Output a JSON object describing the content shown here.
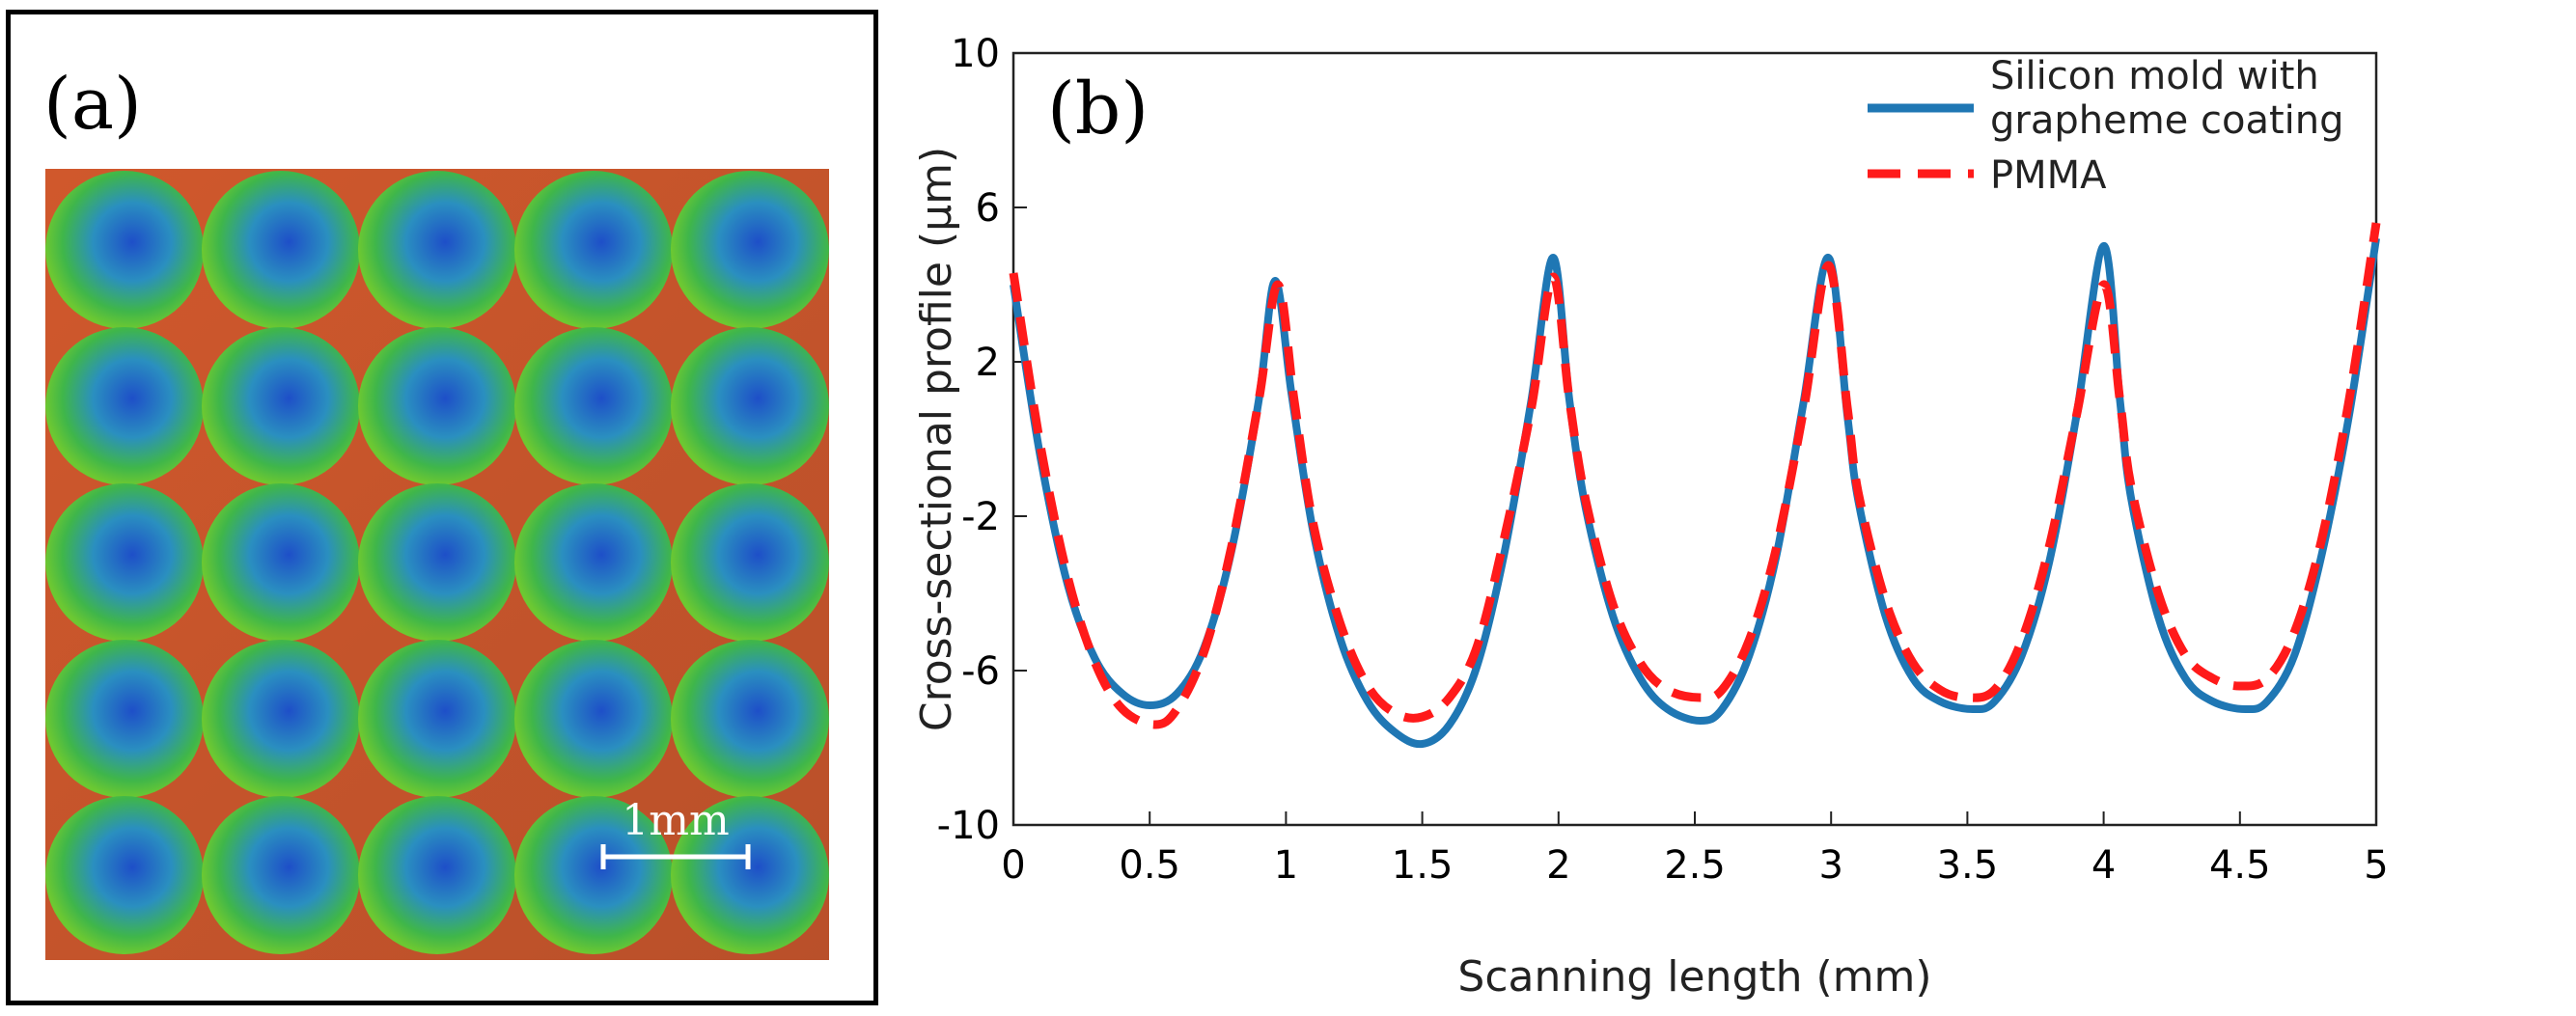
{
  "panel_a": {
    "label": "(a)",
    "scale_bar_label": "1mm",
    "image_description_icon": "microlens-array-image",
    "colors": {
      "background": "#c8562e",
      "lens_outer": "#5fbf3a",
      "lens_inner": "#1e50c8"
    }
  },
  "chart_data": {
    "type": "line",
    "panel_label": "(b)",
    "xlabel": "Scanning length (mm)",
    "ylabel": "Cross-sectional profile (µm)",
    "xlim": [
      0,
      5
    ],
    "ylim": [
      -10,
      10
    ],
    "xticks": [
      0,
      0.5,
      1,
      1.5,
      2,
      2.5,
      3,
      3.5,
      4,
      4.5,
      5
    ],
    "xtick_labels": [
      "0",
      "0.5",
      "1",
      "1.5",
      "2",
      "2.5",
      "3",
      "3.5",
      "4",
      "4.5",
      "5"
    ],
    "yticks": [
      -10,
      -6,
      -2,
      2,
      6,
      10
    ],
    "ytick_labels": [
      "-10",
      "-6",
      "-2",
      "2",
      "6",
      "10"
    ],
    "legend_position": "top-right",
    "series": [
      {
        "name_line1": "Silicon mold with",
        "name_line2": "grapheme coating",
        "color": "#1f77b4",
        "style": "solid",
        "x": [
          0,
          0.1,
          0.2,
          0.3,
          0.4,
          0.5,
          0.6,
          0.7,
          0.8,
          0.9,
          0.96,
          1.02,
          1.1,
          1.2,
          1.3,
          1.4,
          1.5,
          1.6,
          1.7,
          1.8,
          1.9,
          1.98,
          2.04,
          2.1,
          2.2,
          2.3,
          2.4,
          2.52,
          2.6,
          2.7,
          2.8,
          2.9,
          2.99,
          3.06,
          3.1,
          3.2,
          3.3,
          3.4,
          3.52,
          3.6,
          3.7,
          3.8,
          3.9,
          4.0,
          4.06,
          4.1,
          4.2,
          4.3,
          4.4,
          4.52,
          4.6,
          4.7,
          4.8,
          4.9,
          5.0
        ],
        "y": [
          4.0,
          -0.5,
          -3.8,
          -5.7,
          -6.6,
          -6.9,
          -6.6,
          -5.4,
          -2.9,
          1.0,
          4.1,
          1.2,
          -2.4,
          -5.2,
          -6.8,
          -7.6,
          -7.9,
          -7.4,
          -5.9,
          -3.0,
          1.0,
          4.7,
          1.0,
          -1.8,
          -4.6,
          -6.2,
          -7.0,
          -7.3,
          -7.0,
          -5.6,
          -3.0,
          1.0,
          4.7,
          0.6,
          -1.6,
          -4.6,
          -6.2,
          -6.8,
          -7.0,
          -6.8,
          -5.6,
          -3.2,
          0.6,
          5.0,
          1.0,
          -1.5,
          -4.6,
          -6.2,
          -6.8,
          -7.0,
          -6.8,
          -5.6,
          -3.0,
          0.6,
          5.2
        ]
      },
      {
        "name": "PMMA",
        "color": "#ff1a1a",
        "style": "dashed",
        "x": [
          0,
          0.1,
          0.2,
          0.3,
          0.4,
          0.52,
          0.6,
          0.7,
          0.8,
          0.9,
          0.97,
          1.03,
          1.1,
          1.2,
          1.3,
          1.4,
          1.5,
          1.6,
          1.7,
          1.8,
          1.9,
          1.98,
          2.04,
          2.1,
          2.2,
          2.3,
          2.4,
          2.52,
          2.6,
          2.7,
          2.8,
          2.9,
          2.99,
          3.06,
          3.1,
          3.2,
          3.3,
          3.4,
          3.5,
          3.6,
          3.7,
          3.8,
          3.9,
          4.0,
          4.06,
          4.1,
          4.2,
          4.3,
          4.4,
          4.5,
          4.6,
          4.7,
          4.8,
          4.9,
          5.0
        ],
        "y": [
          4.3,
          -0.2,
          -3.6,
          -5.8,
          -7.0,
          -7.4,
          -7.0,
          -5.5,
          -2.8,
          1.0,
          4.0,
          1.0,
          -2.2,
          -4.8,
          -6.4,
          -7.1,
          -7.2,
          -6.7,
          -5.4,
          -2.6,
          0.8,
          4.2,
          1.0,
          -1.6,
          -4.3,
          -5.8,
          -6.5,
          -6.7,
          -6.5,
          -5.2,
          -2.8,
          0.8,
          4.5,
          0.8,
          -1.4,
          -4.2,
          -5.8,
          -6.5,
          -6.7,
          -6.5,
          -5.2,
          -2.8,
          0.6,
          4.0,
          1.0,
          -1.2,
          -4.0,
          -5.6,
          -6.2,
          -6.4,
          -6.2,
          -5.0,
          -2.6,
          1.0,
          5.6
        ]
      }
    ]
  }
}
